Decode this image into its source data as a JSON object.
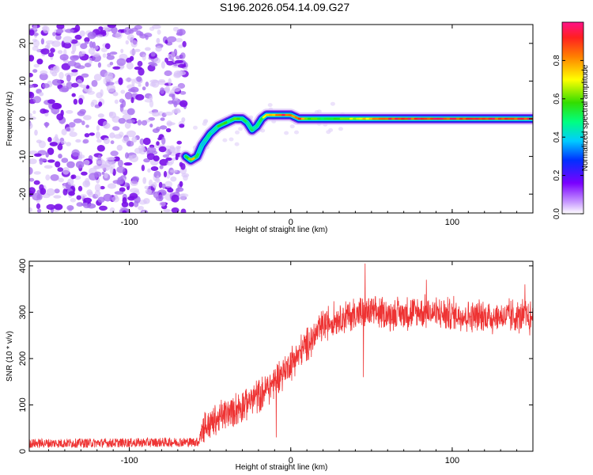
{
  "title": "S196.2026.054.14.09.G27",
  "chart_data": [
    {
      "type": "heatmap",
      "name": "spectrogram",
      "xlabel": "Height of straight line (km)",
      "ylabel": "Frequency (Hz)",
      "xlim": [
        -162,
        150
      ],
      "ylim": [
        -25,
        25
      ],
      "xticks": [
        -100,
        0,
        100
      ],
      "yticks": [
        -20,
        -10,
        0,
        10,
        20
      ],
      "colorbar": {
        "label": "Normalized spectral amplitude",
        "range": [
          0,
          1
        ],
        "ticks": [
          0.0,
          0.2,
          0.4,
          0.6,
          0.8
        ]
      },
      "noise_region_x": [
        -162,
        -65
      ],
      "signal_track": {
        "x": [
          -65,
          -62,
          -58,
          -55,
          -50,
          -45,
          -40,
          -35,
          -30,
          -27,
          -24,
          -21,
          -18,
          -15,
          -10,
          -5,
          0,
          5,
          10,
          20,
          30,
          40,
          60,
          80,
          100,
          120,
          150
        ],
        "freq": [
          -10,
          -11,
          -10,
          -7,
          -4,
          -2,
          -1,
          0,
          0,
          -1,
          -3,
          -2,
          0,
          1,
          1,
          1,
          1,
          0,
          0,
          0,
          0,
          0,
          0,
          0,
          0,
          0,
          0
        ],
        "amplitude": [
          0.5,
          0.8,
          0.5,
          0.4,
          0.45,
          0.5,
          0.5,
          0.6,
          0.55,
          0.45,
          0.4,
          0.5,
          0.6,
          0.7,
          0.85,
          0.9,
          0.8,
          0.85,
          0.6,
          0.5,
          0.55,
          0.7,
          0.9,
          0.9,
          0.9,
          0.9,
          0.9
        ]
      }
    },
    {
      "type": "line",
      "name": "snr",
      "xlabel": "Height of straight line (km)",
      "ylabel": "SNR (10 * v/v)",
      "xlim": [
        -162,
        150
      ],
      "ylim": [
        0,
        410
      ],
      "xticks": [
        -100,
        0,
        100
      ],
      "yticks": [
        0,
        100,
        200,
        300,
        400
      ],
      "color": "#ee3333",
      "trend": {
        "x": [
          -162,
          -110,
          -57,
          -55,
          -40,
          -20,
          -10,
          0,
          10,
          20,
          30,
          40,
          50,
          60,
          80,
          100,
          120,
          150
        ],
        "y": [
          17,
          18,
          20,
          50,
          80,
          120,
          150,
          190,
          230,
          270,
          290,
          295,
          300,
          295,
          300,
          295,
          290,
          290
        ]
      },
      "noise_amplitude": 30,
      "spikes": [
        {
          "x": 46,
          "y": 405
        },
        {
          "x": 45,
          "y": 160
        },
        {
          "x": -9,
          "y": 30
        },
        {
          "x": 84,
          "y": 370
        },
        {
          "x": 145,
          "y": 360
        },
        {
          "x": 148,
          "y": 250
        }
      ]
    }
  ]
}
